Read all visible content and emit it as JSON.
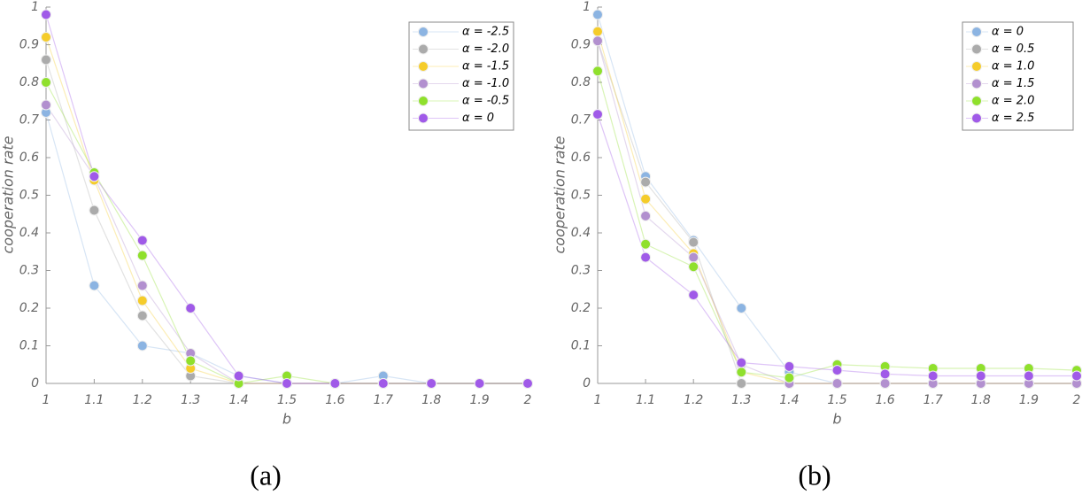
{
  "chart_data": [
    {
      "type": "line",
      "xlabel": "b",
      "ylabel": "cooperation rate",
      "caption": "(a)",
      "x": [
        1,
        1.1,
        1.2,
        1.3,
        1.4,
        1.5,
        1.6,
        1.7,
        1.8,
        1.9,
        2
      ],
      "xlim": [
        1,
        2
      ],
      "xticks": [
        1,
        1.1,
        1.2,
        1.3,
        1.4,
        1.5,
        1.6,
        1.7,
        1.8,
        1.9,
        2
      ],
      "ylim": [
        0,
        1
      ],
      "yticks": [
        0,
        0.1,
        0.2,
        0.3,
        0.4,
        0.5,
        0.6,
        0.7,
        0.8,
        0.9,
        1
      ],
      "legend": "upper right",
      "series": [
        {
          "name": "α = -2.5",
          "color": "#8cb4e2",
          "values": [
            0.72,
            0.26,
            0.1,
            0.08,
            0.02,
            0,
            0,
            0.02,
            0,
            0,
            0
          ]
        },
        {
          "name": "α = -2.0",
          "color": "#ababab",
          "values": [
            0.86,
            0.46,
            0.18,
            0.02,
            0,
            0,
            0,
            0,
            0,
            0,
            0
          ]
        },
        {
          "name": "α = -1.5",
          "color": "#f5cc2a",
          "values": [
            0.92,
            0.54,
            0.22,
            0.04,
            0,
            0,
            0,
            0,
            0,
            0,
            0
          ]
        },
        {
          "name": "α = -1.0",
          "color": "#b290cf",
          "values": [
            0.74,
            0.55,
            0.26,
            0.08,
            0,
            0,
            0,
            0,
            0,
            0,
            0
          ]
        },
        {
          "name": "α = -0.5",
          "color": "#8fe02c",
          "values": [
            0.8,
            0.56,
            0.34,
            0.06,
            0,
            0.02,
            0,
            0,
            0,
            0,
            0
          ]
        },
        {
          "name": "α = 0",
          "color": "#a05ae8",
          "values": [
            0.98,
            0.55,
            0.38,
            0.2,
            0.02,
            0,
            0,
            0,
            0,
            0,
            0
          ]
        }
      ]
    },
    {
      "type": "line",
      "xlabel": "b",
      "ylabel": "cooperation rate",
      "caption": "(b)",
      "x": [
        1,
        1.1,
        1.2,
        1.3,
        1.4,
        1.5,
        1.6,
        1.7,
        1.8,
        1.9,
        2
      ],
      "xlim": [
        1,
        2
      ],
      "xticks": [
        1,
        1.1,
        1.2,
        1.3,
        1.4,
        1.5,
        1.6,
        1.7,
        1.8,
        1.9,
        2
      ],
      "ylim": [
        0,
        1
      ],
      "yticks": [
        0,
        0.1,
        0.2,
        0.3,
        0.4,
        0.5,
        0.6,
        0.7,
        0.8,
        0.9,
        1
      ],
      "legend": "upper right",
      "series": [
        {
          "name": "α = 0",
          "color": "#8cb4e2",
          "values": [
            0.98,
            0.55,
            0.38,
            0.2,
            0.03,
            0,
            0,
            0,
            0,
            0,
            0
          ]
        },
        {
          "name": "α = 0.5",
          "color": "#ababab",
          "values": [
            0.91,
            0.535,
            0.375,
            0,
            0,
            0,
            0,
            0,
            0,
            0,
            0
          ]
        },
        {
          "name": "α = 1.0",
          "color": "#f5cc2a",
          "values": [
            0.935,
            0.49,
            0.345,
            0.03,
            0,
            0,
            0,
            0,
            0,
            0,
            0
          ]
        },
        {
          "name": "α = 1.5",
          "color": "#b290cf",
          "values": [
            0.91,
            0.445,
            0.335,
            0.05,
            0,
            0,
            0,
            0,
            0,
            0,
            0
          ]
        },
        {
          "name": "α = 2.0",
          "color": "#8fe02c",
          "values": [
            0.83,
            0.37,
            0.31,
            0.03,
            0.015,
            0.05,
            0.045,
            0.04,
            0.04,
            0.04,
            0.035
          ]
        },
        {
          "name": "α = 2.5",
          "color": "#a05ae8",
          "values": [
            0.715,
            0.335,
            0.235,
            0.055,
            0.045,
            0.035,
            0.025,
            0.02,
            0.02,
            0.02,
            0.02
          ]
        }
      ]
    }
  ]
}
